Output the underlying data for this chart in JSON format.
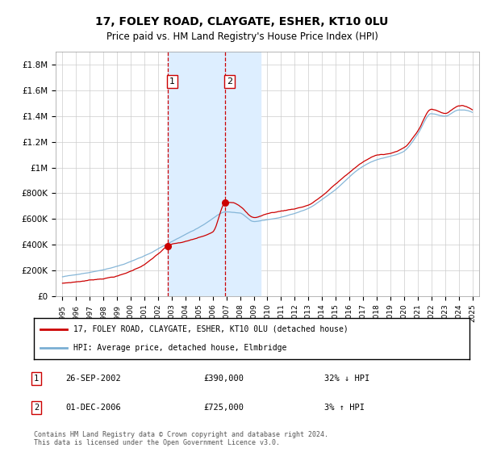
{
  "title": "17, FOLEY ROAD, CLAYGATE, ESHER, KT10 0LU",
  "subtitle": "Price paid vs. HM Land Registry's House Price Index (HPI)",
  "legend_line1": "17, FOLEY ROAD, CLAYGATE, ESHER, KT10 0LU (detached house)",
  "legend_line2": "HPI: Average price, detached house, Elmbridge",
  "table": [
    {
      "num": "1",
      "date": "26-SEP-2002",
      "price": "£390,000",
      "hpi": "32% ↓ HPI"
    },
    {
      "num": "2",
      "date": "01-DEC-2006",
      "price": "£725,000",
      "hpi": "3% ↑ HPI"
    }
  ],
  "footer": "Contains HM Land Registry data © Crown copyright and database right 2024.\nThis data is licensed under the Open Government Licence v3.0.",
  "sale1_year": 2002.73,
  "sale1_price": 390000,
  "sale2_year": 2006.92,
  "sale2_price": 725000,
  "shade1_start": 2002.73,
  "shade1_end": 2006.92,
  "shade2_start": 2006.92,
  "shade2_end": 2009.5,
  "red_color": "#cc0000",
  "blue_color": "#7aafd4",
  "shade_color": "#ddeeff",
  "ylim_min": 0,
  "ylim_max": 1900000,
  "yticks": [
    0,
    200000,
    400000,
    600000,
    800000,
    1000000,
    1200000,
    1400000,
    1600000,
    1800000
  ],
  "ytick_labels": [
    "£0",
    "£200K",
    "£400K",
    "£600K",
    "£800K",
    "£1M",
    "£1.2M",
    "£1.4M",
    "£1.6M",
    "£1.8M"
  ],
  "xmin": 1994.5,
  "xmax": 2025.5,
  "year_ticks": [
    1995,
    1996,
    1997,
    1998,
    1999,
    2000,
    2001,
    2002,
    2003,
    2004,
    2005,
    2006,
    2007,
    2008,
    2009,
    2010,
    2011,
    2012,
    2013,
    2014,
    2015,
    2016,
    2017,
    2018,
    2019,
    2020,
    2021,
    2022,
    2023,
    2024,
    2025
  ]
}
